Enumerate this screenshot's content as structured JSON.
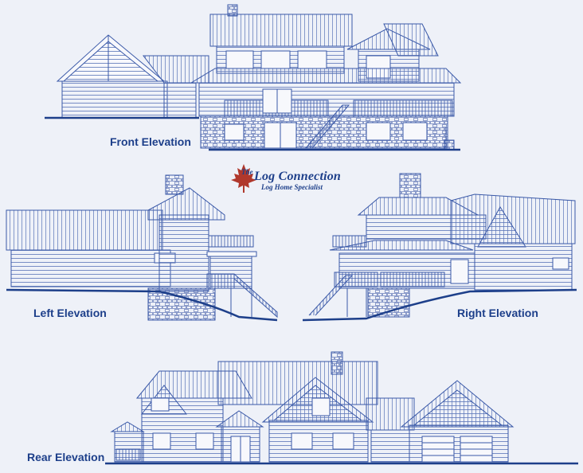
{
  "logo": {
    "prefix": "The",
    "name": "Log Connection",
    "tagline": "Log Home Specialist",
    "leaf_color": "#b0382c"
  },
  "elevations": [
    {
      "key": "front",
      "label": "Front Elevation"
    },
    {
      "key": "left",
      "label": "Left Elevation"
    },
    {
      "key": "right",
      "label": "Right Elevation"
    },
    {
      "key": "rear",
      "label": "Rear Elevation"
    }
  ],
  "colors": {
    "background": "#eef1f8",
    "line": "#3a59a8",
    "label": "#1d3f8a"
  }
}
